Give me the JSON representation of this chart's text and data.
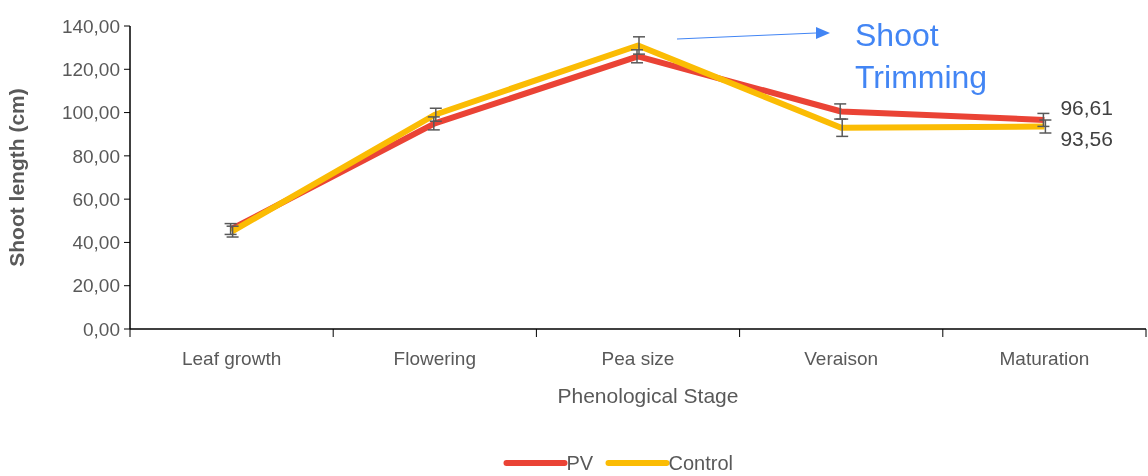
{
  "chart_data": {
    "type": "line",
    "xlabel": "Phenological Stage",
    "ylabel": "Shoot length (cm)",
    "categories": [
      "Leaf growth",
      "Flowering",
      "Pea size",
      "Veraison",
      "Maturation"
    ],
    "series": [
      {
        "name": "PV",
        "color": "#ea4335",
        "values": [
          46.2,
          95,
          126,
          100.5,
          96.61
        ],
        "errors": [
          2.5,
          3,
          3,
          3.5,
          3
        ],
        "value_labels": [
          null,
          null,
          null,
          null,
          "96,61"
        ]
      },
      {
        "name": "Control",
        "color": "#fbbc04",
        "values": [
          45,
          99,
          131,
          93,
          93.56
        ],
        "errors": [
          2.5,
          3,
          4,
          4,
          3
        ],
        "value_labels": [
          null,
          null,
          null,
          null,
          "93,56"
        ]
      }
    ],
    "ylim": [
      0,
      140
    ],
    "yticks": [
      {
        "value": 0,
        "label": "0,00"
      },
      {
        "value": 20,
        "label": "20,00"
      },
      {
        "value": 40,
        "label": "40,00"
      },
      {
        "value": 60,
        "label": "60,00"
      },
      {
        "value": 80,
        "label": "80,00"
      },
      {
        "value": 100,
        "label": "100,00"
      },
      {
        "value": 120,
        "label": "120,00"
      },
      {
        "value": 140,
        "label": "140,00"
      }
    ],
    "annotations": [
      "Shoot Trimming"
    ],
    "legend": "bottom",
    "marker": "none",
    "line_style": "solid",
    "grid": false
  }
}
